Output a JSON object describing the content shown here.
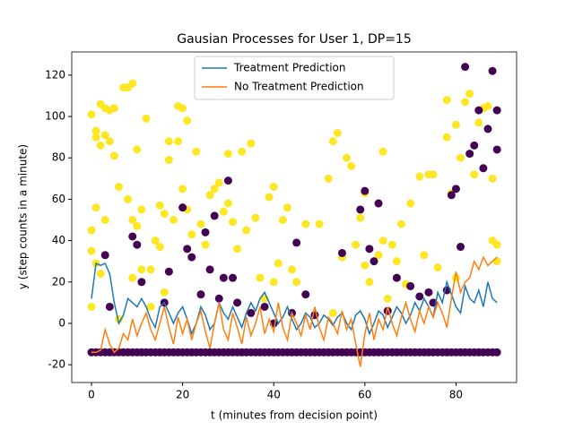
{
  "chart_data": {
    "type": "scatter_line",
    "title": "Gausian Processes for User 1, DP=15",
    "xlabel": "t (minutes from decision point)",
    "ylabel": "y (step counts in a minute)",
    "xlim": [
      -4.33,
      93.3
    ],
    "ylim": [
      -28.6,
      131.2
    ],
    "xticks": [
      0,
      20,
      40,
      60,
      80
    ],
    "yticks": [
      -20,
      0,
      20,
      40,
      60,
      80,
      100,
      120
    ],
    "legend": "upper center",
    "scatter": [
      {
        "color": "#fde725",
        "x": [
          0,
          0,
          0,
          0,
          1,
          1,
          1,
          1,
          2,
          2,
          2,
          3,
          3,
          3,
          4,
          4,
          5,
          5,
          6,
          6,
          7,
          8,
          8,
          9,
          9,
          9,
          10,
          10,
          11,
          11,
          12,
          13,
          13,
          14,
          15,
          15,
          16,
          16,
          17,
          17,
          18,
          19,
          19,
          20,
          20,
          21,
          21,
          22,
          23,
          24,
          25,
          26,
          27,
          28,
          29,
          30,
          30,
          31,
          32,
          33,
          34,
          35,
          36,
          37,
          38,
          39,
          40,
          40,
          41,
          42,
          43,
          44,
          45,
          47,
          50,
          52,
          53,
          53,
          54,
          55,
          56,
          57,
          58,
          59,
          60,
          60,
          61,
          63,
          64,
          64,
          65,
          66,
          67,
          68,
          69,
          70,
          72,
          73,
          74,
          75,
          76,
          78,
          78,
          79,
          80,
          80,
          81,
          82,
          83,
          84,
          85,
          86,
          87,
          88,
          88,
          89,
          89
        ],
        "y": [
          101,
          45,
          35,
          8,
          93,
          90,
          56,
          29,
          106,
          86,
          24,
          104,
          91,
          50,
          103,
          88,
          104,
          81,
          66,
          2,
          114,
          114,
          60,
          116,
          50,
          22,
          84,
          47,
          55,
          26,
          99,
          26,
          8,
          40,
          57,
          37,
          53,
          15,
          88,
          79,
          50,
          105,
          88,
          104,
          65,
          98,
          55,
          43,
          83,
          48,
          38,
          62,
          65,
          68,
          54,
          82,
          58,
          49,
          36,
          83,
          45,
          87,
          51,
          22,
          12,
          61,
          66,
          20,
          29,
          50,
          56,
          26,
          20,
          48,
          48,
          70,
          88,
          5,
          92,
          32,
          80,
          76,
          38,
          51,
          63,
          28,
          20,
          33,
          83,
          40,
          12,
          38,
          30,
          48,
          19,
          58,
          71,
          33,
          72,
          72,
          27,
          90,
          108,
          63,
          96,
          22,
          80,
          107,
          111,
          72,
          97,
          104,
          105,
          70,
          40,
          38,
          30
        ]
      },
      {
        "color": "#440154",
        "x": [
          3,
          4,
          9,
          10,
          11,
          16,
          17,
          20,
          21,
          22,
          24,
          25,
          26,
          27,
          28,
          29,
          30,
          31,
          32,
          35,
          38,
          40,
          44,
          45,
          47,
          49,
          55,
          59,
          60,
          61,
          62,
          63,
          65,
          67,
          70,
          72,
          74,
          75,
          78,
          79,
          80,
          81,
          82,
          83,
          84,
          85,
          86,
          87,
          88,
          89,
          89
        ],
        "y": [
          33,
          8,
          42,
          38,
          20,
          10,
          25,
          56,
          36,
          32,
          14,
          44,
          26,
          52,
          12,
          22,
          69,
          22,
          10,
          5,
          8,
          0,
          5,
          39,
          14,
          4,
          34,
          55,
          64,
          36,
          30,
          58,
          6,
          22,
          18,
          13,
          15,
          10,
          16,
          62,
          65,
          37,
          124,
          82,
          86,
          103,
          75,
          94,
          122,
          84,
          103
        ]
      },
      {
        "color": "#440154",
        "x": [
          0,
          1,
          2,
          3,
          4,
          5,
          6,
          7,
          8,
          9,
          10,
          11,
          12,
          13,
          14,
          15,
          16,
          17,
          18,
          19,
          20,
          21,
          22,
          23,
          24,
          25,
          26,
          27,
          28,
          29,
          30,
          31,
          32,
          33,
          34,
          35,
          36,
          37,
          38,
          39,
          40,
          41,
          42,
          43,
          44,
          45,
          46,
          47,
          48,
          49,
          50,
          51,
          52,
          53,
          54,
          55,
          56,
          57,
          58,
          59,
          60,
          61,
          62,
          63,
          64,
          65,
          66,
          67,
          68,
          69,
          70,
          71,
          72,
          73,
          74,
          75,
          76,
          77,
          78,
          79,
          80,
          81,
          82,
          83,
          84,
          85,
          86,
          87,
          88,
          89
        ],
        "y": [
          -14,
          -14,
          -14,
          -14,
          -14,
          -14,
          -14,
          -14,
          -14,
          -14,
          -14,
          -14,
          -14,
          -14,
          -14,
          -14,
          -14,
          -14,
          -14,
          -14,
          -14,
          -14,
          -14,
          -14,
          -14,
          -14,
          -14,
          -14,
          -14,
          -14,
          -14,
          -14,
          -14,
          -14,
          -14,
          -14,
          -14,
          -14,
          -14,
          -14,
          -14,
          -14,
          -14,
          -14,
          -14,
          -14,
          -14,
          -14,
          -14,
          -14,
          -14,
          -14,
          -14,
          -14,
          -14,
          -14,
          -14,
          -14,
          -14,
          -14,
          -14,
          -14,
          -14,
          -14,
          -14,
          -14,
          -14,
          -14,
          -14,
          -14,
          -14,
          -14,
          -14,
          -14,
          -14,
          -14,
          -14,
          -14,
          -14,
          -14,
          -14,
          -14,
          -14,
          -14,
          -14,
          -14,
          -14,
          -14,
          -14,
          -14
        ]
      }
    ],
    "x": [
      0,
      1,
      2,
      3,
      4,
      5,
      6,
      7,
      8,
      9,
      10,
      11,
      12,
      13,
      14,
      15,
      16,
      17,
      18,
      19,
      20,
      21,
      22,
      23,
      24,
      25,
      26,
      27,
      28,
      29,
      30,
      31,
      32,
      33,
      34,
      35,
      36,
      37,
      38,
      39,
      40,
      41,
      42,
      43,
      44,
      45,
      46,
      47,
      48,
      49,
      50,
      51,
      52,
      53,
      54,
      55,
      56,
      57,
      58,
      59,
      60,
      61,
      62,
      63,
      64,
      65,
      66,
      67,
      68,
      69,
      70,
      71,
      72,
      73,
      74,
      75,
      76,
      77,
      78,
      79,
      80,
      81,
      82,
      83,
      84,
      85,
      86,
      87,
      88,
      89
    ],
    "series": [
      {
        "name": "Treatment Prediction",
        "color": "#1f77b4",
        "values": [
          12,
          29,
          28,
          29,
          24,
          10,
          0,
          4,
          12,
          10,
          8,
          12,
          8,
          2,
          -2,
          8,
          10,
          5,
          0,
          5,
          8,
          2,
          -5,
          0,
          8,
          4,
          -3,
          0,
          10,
          5,
          2,
          8,
          3,
          -2,
          5,
          10,
          6,
          12,
          15,
          10,
          5,
          0,
          3,
          8,
          2,
          -3,
          0,
          5,
          3,
          -2,
          0,
          4,
          2,
          -1,
          3,
          5,
          0,
          -3,
          4,
          6,
          2,
          -5,
          0,
          6,
          4,
          -2,
          3,
          8,
          5,
          0,
          4,
          10,
          6,
          12,
          8,
          3,
          15,
          10,
          20,
          14,
          8,
          5,
          18,
          12,
          10,
          16,
          8,
          20,
          12,
          10
        ]
      },
      {
        "name": "No Treatment Prediction",
        "color": "#ff7f0e",
        "values": [
          -14,
          -14,
          -13,
          -3,
          -10,
          -14,
          -12,
          -5,
          -8,
          2,
          -6,
          0,
          5,
          -3,
          -8,
          0,
          8,
          -2,
          -10,
          3,
          -5,
          2,
          -8,
          0,
          6,
          -4,
          -12,
          0,
          10,
          -3,
          -8,
          5,
          -2,
          -10,
          3,
          -6,
          0,
          8,
          -5,
          2,
          -4,
          10,
          -2,
          -8,
          5,
          0,
          -6,
          4,
          -3,
          8,
          -2,
          -8,
          3,
          0,
          -5,
          6,
          -3,
          2,
          -10,
          -21,
          -5,
          5,
          -8,
          2,
          -3,
          8,
          0,
          -6,
          3,
          10,
          2,
          -4,
          6,
          0,
          8,
          3,
          10,
          5,
          -2,
          12,
          25,
          15,
          20,
          22,
          30,
          26,
          32,
          28,
          30,
          32
        ]
      }
    ]
  }
}
